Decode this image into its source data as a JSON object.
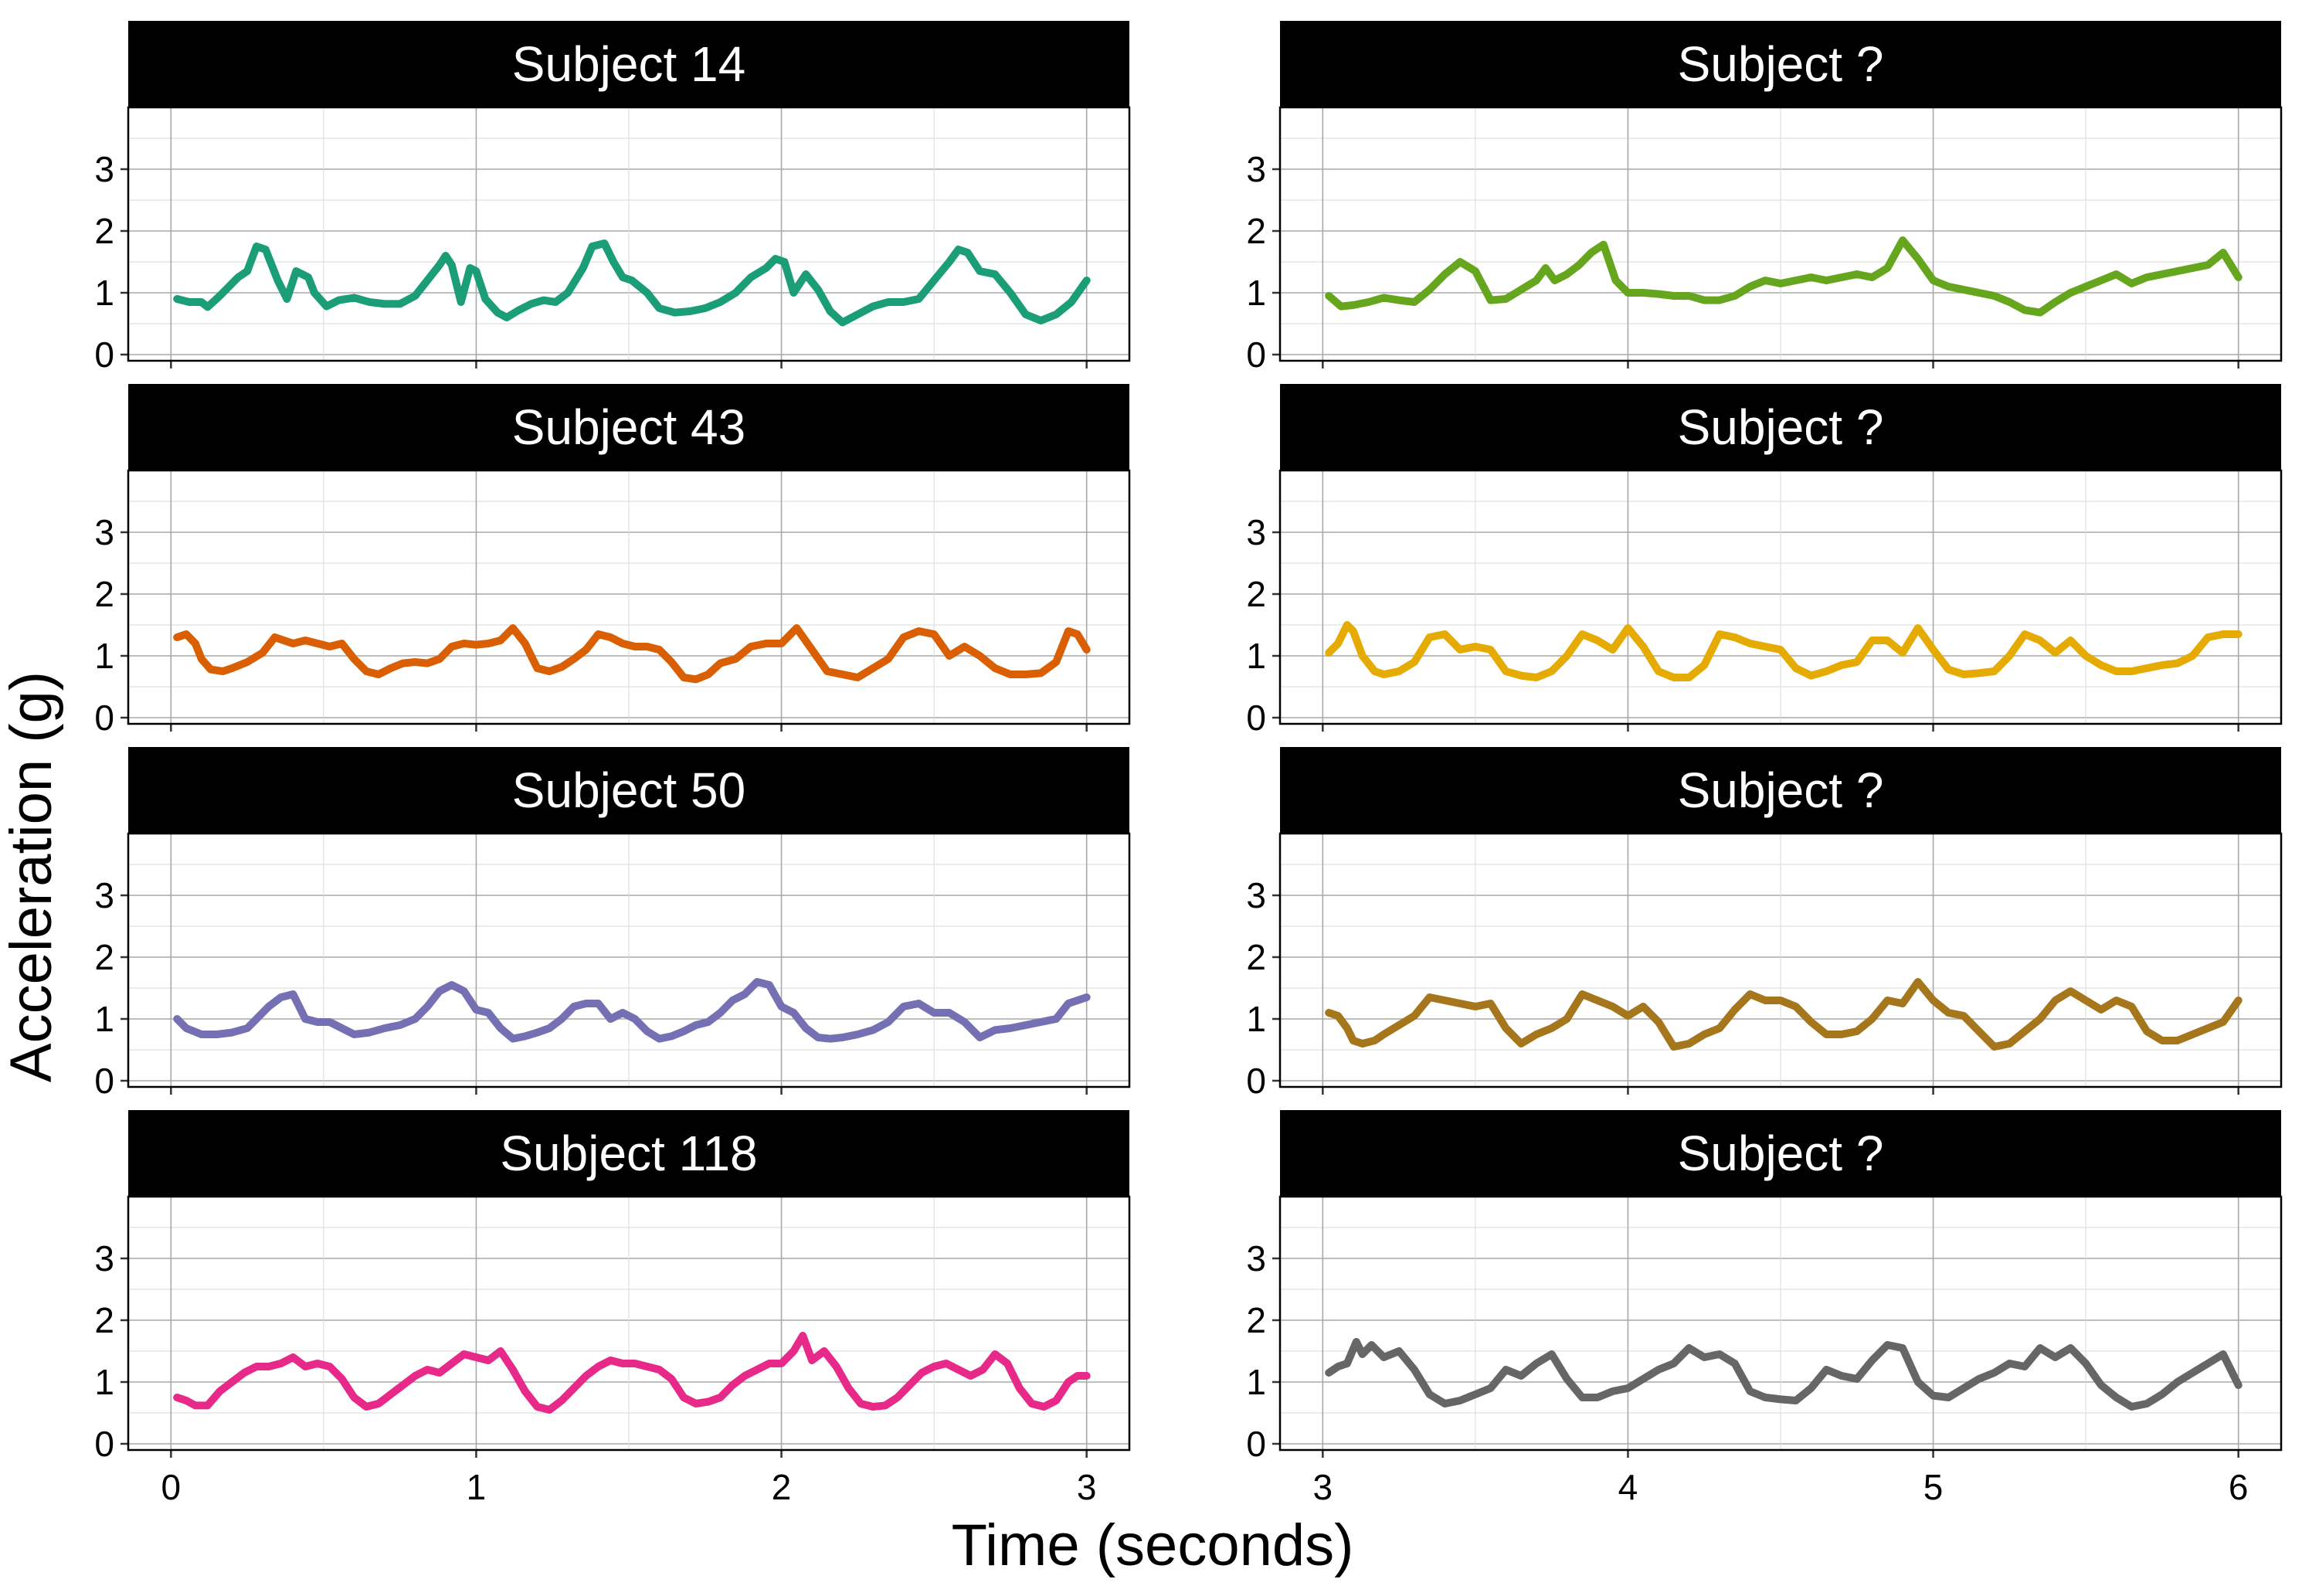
{
  "chart_data": {
    "type": "line",
    "xlabel": "Time (seconds)",
    "ylabel": "Acceleration (g)",
    "ylim": [
      -0.1,
      4.0
    ],
    "yticks": [
      0,
      1,
      2,
      3
    ],
    "grid": true,
    "facets": "4 rows x 2 columns",
    "columns": [
      {
        "xlim": [
          -0.14,
          3.14
        ],
        "xticks": [
          0,
          1,
          2,
          3
        ]
      },
      {
        "xlim": [
          2.86,
          6.14
        ],
        "xticks": [
          3,
          4,
          5,
          6
        ]
      }
    ],
    "panels": [
      {
        "title": "Subject 14",
        "column": 0,
        "row": 0,
        "color": "#1b9e77",
        "x": [
          0.02,
          0.06,
          0.1,
          0.12,
          0.16,
          0.2,
          0.22,
          0.25,
          0.28,
          0.31,
          0.35,
          0.38,
          0.41,
          0.45,
          0.47,
          0.51,
          0.55,
          0.6,
          0.65,
          0.7,
          0.75,
          0.8,
          0.84,
          0.88,
          0.9,
          0.92,
          0.95,
          0.98,
          1.0,
          1.03,
          1.07,
          1.1,
          1.14,
          1.18,
          1.22,
          1.26,
          1.3,
          1.35,
          1.38,
          1.42,
          1.45,
          1.48,
          1.51,
          1.56,
          1.6,
          1.65,
          1.7,
          1.75,
          1.8,
          1.85,
          1.9,
          1.95,
          1.98,
          2.01,
          2.04,
          2.08,
          2.12,
          2.16,
          2.2,
          2.25,
          2.3,
          2.35,
          2.4,
          2.45,
          2.5,
          2.55,
          2.58,
          2.61,
          2.65,
          2.7,
          2.75,
          2.8,
          2.85,
          2.9,
          2.95,
          3.0
        ],
        "values": [
          0.9,
          0.85,
          0.85,
          0.77,
          0.95,
          1.15,
          1.25,
          1.35,
          1.75,
          1.7,
          1.2,
          0.9,
          1.35,
          1.25,
          1.0,
          0.78,
          0.88,
          0.92,
          0.85,
          0.82,
          0.82,
          0.95,
          1.2,
          1.45,
          1.6,
          1.45,
          0.85,
          1.4,
          1.35,
          0.9,
          0.68,
          0.6,
          0.72,
          0.82,
          0.88,
          0.85,
          1.0,
          1.4,
          1.75,
          1.8,
          1.5,
          1.25,
          1.2,
          1.0,
          0.75,
          0.68,
          0.7,
          0.75,
          0.85,
          1.0,
          1.25,
          1.4,
          1.55,
          1.5,
          1.0,
          1.3,
          1.05,
          0.7,
          0.52,
          0.65,
          0.78,
          0.85,
          0.85,
          0.9,
          1.2,
          1.5,
          1.7,
          1.65,
          1.35,
          1.3,
          1.0,
          0.65,
          0.55,
          0.65,
          0.85,
          1.2
        ]
      },
      {
        "title": "Subject ?",
        "column": 1,
        "row": 0,
        "color": "#66a61e",
        "x": [
          3.02,
          3.06,
          3.1,
          3.15,
          3.2,
          3.25,
          3.3,
          3.35,
          3.4,
          3.45,
          3.5,
          3.55,
          3.6,
          3.65,
          3.7,
          3.73,
          3.76,
          3.8,
          3.84,
          3.88,
          3.92,
          3.96,
          4.0,
          4.05,
          4.1,
          4.15,
          4.2,
          4.25,
          4.3,
          4.35,
          4.4,
          4.45,
          4.5,
          4.55,
          4.6,
          4.65,
          4.7,
          4.75,
          4.8,
          4.85,
          4.9,
          4.95,
          5.0,
          5.05,
          5.1,
          5.15,
          5.2,
          5.25,
          5.3,
          5.35,
          5.4,
          5.45,
          5.5,
          5.55,
          5.6,
          5.65,
          5.7,
          5.75,
          5.8,
          5.85,
          5.9,
          5.95,
          6.0
        ],
        "values": [
          0.95,
          0.78,
          0.8,
          0.85,
          0.92,
          0.88,
          0.85,
          1.05,
          1.3,
          1.5,
          1.35,
          0.88,
          0.9,
          1.05,
          1.2,
          1.4,
          1.2,
          1.3,
          1.45,
          1.65,
          1.78,
          1.2,
          1.0,
          1.0,
          0.98,
          0.95,
          0.95,
          0.88,
          0.88,
          0.95,
          1.1,
          1.2,
          1.15,
          1.2,
          1.25,
          1.2,
          1.25,
          1.3,
          1.25,
          1.4,
          1.85,
          1.55,
          1.2,
          1.1,
          1.05,
          1.0,
          0.95,
          0.85,
          0.72,
          0.68,
          0.85,
          1.0,
          1.1,
          1.2,
          1.3,
          1.15,
          1.25,
          1.3,
          1.35,
          1.4,
          1.45,
          1.65,
          1.25
        ]
      },
      {
        "title": "Subject 43",
        "column": 0,
        "row": 1,
        "color": "#d95f02",
        "x": [
          0.02,
          0.05,
          0.08,
          0.1,
          0.13,
          0.17,
          0.2,
          0.25,
          0.3,
          0.34,
          0.37,
          0.4,
          0.44,
          0.48,
          0.52,
          0.56,
          0.6,
          0.64,
          0.68,
          0.72,
          0.76,
          0.8,
          0.84,
          0.88,
          0.92,
          0.96,
          1.0,
          1.04,
          1.08,
          1.12,
          1.16,
          1.2,
          1.24,
          1.28,
          1.32,
          1.36,
          1.4,
          1.44,
          1.48,
          1.52,
          1.56,
          1.6,
          1.64,
          1.68,
          1.72,
          1.76,
          1.8,
          1.85,
          1.9,
          1.95,
          2.0,
          2.05,
          2.1,
          2.15,
          2.2,
          2.25,
          2.3,
          2.35,
          2.4,
          2.45,
          2.5,
          2.55,
          2.6,
          2.65,
          2.7,
          2.75,
          2.8,
          2.85,
          2.9,
          2.94,
          2.97,
          3.0
        ],
        "values": [
          1.3,
          1.35,
          1.2,
          0.95,
          0.78,
          0.75,
          0.8,
          0.9,
          1.05,
          1.3,
          1.25,
          1.2,
          1.25,
          1.2,
          1.15,
          1.2,
          0.95,
          0.75,
          0.7,
          0.8,
          0.88,
          0.9,
          0.88,
          0.95,
          1.15,
          1.2,
          1.18,
          1.2,
          1.25,
          1.45,
          1.2,
          0.8,
          0.75,
          0.82,
          0.95,
          1.1,
          1.35,
          1.3,
          1.2,
          1.15,
          1.15,
          1.1,
          0.9,
          0.65,
          0.62,
          0.7,
          0.88,
          0.95,
          1.15,
          1.2,
          1.2,
          1.45,
          1.1,
          0.75,
          0.7,
          0.65,
          0.8,
          0.95,
          1.3,
          1.4,
          1.35,
          1.0,
          1.15,
          1.0,
          0.8,
          0.7,
          0.7,
          0.72,
          0.9,
          1.4,
          1.35,
          1.1
        ]
      },
      {
        "title": "Subject ?",
        "column": 1,
        "row": 1,
        "color": "#e6ab02",
        "x": [
          3.02,
          3.05,
          3.08,
          3.1,
          3.13,
          3.17,
          3.2,
          3.25,
          3.3,
          3.35,
          3.4,
          3.45,
          3.5,
          3.55,
          3.6,
          3.65,
          3.7,
          3.75,
          3.8,
          3.85,
          3.9,
          3.95,
          4.0,
          4.05,
          4.1,
          4.15,
          4.2,
          4.25,
          4.3,
          4.35,
          4.4,
          4.45,
          4.5,
          4.55,
          4.6,
          4.65,
          4.7,
          4.75,
          4.8,
          4.85,
          4.9,
          4.95,
          5.0,
          5.05,
          5.1,
          5.15,
          5.2,
          5.25,
          5.3,
          5.35,
          5.4,
          5.45,
          5.5,
          5.55,
          5.6,
          5.65,
          5.7,
          5.75,
          5.8,
          5.85,
          5.9,
          5.95,
          6.0
        ],
        "values": [
          1.05,
          1.2,
          1.5,
          1.4,
          1.0,
          0.75,
          0.7,
          0.75,
          0.9,
          1.3,
          1.35,
          1.1,
          1.15,
          1.1,
          0.75,
          0.68,
          0.65,
          0.75,
          1.0,
          1.35,
          1.25,
          1.1,
          1.45,
          1.15,
          0.75,
          0.65,
          0.65,
          0.85,
          1.35,
          1.3,
          1.2,
          1.15,
          1.1,
          0.8,
          0.68,
          0.75,
          0.85,
          0.9,
          1.25,
          1.25,
          1.05,
          1.45,
          1.1,
          0.78,
          0.7,
          0.72,
          0.75,
          1.0,
          1.35,
          1.25,
          1.05,
          1.25,
          1.0,
          0.85,
          0.75,
          0.75,
          0.8,
          0.85,
          0.88,
          1.0,
          1.3,
          1.35,
          1.35
        ]
      },
      {
        "title": "Subject 50",
        "column": 0,
        "row": 2,
        "color": "#7570b3",
        "x": [
          0.02,
          0.05,
          0.1,
          0.15,
          0.2,
          0.25,
          0.28,
          0.32,
          0.36,
          0.4,
          0.44,
          0.48,
          0.52,
          0.56,
          0.6,
          0.65,
          0.7,
          0.75,
          0.8,
          0.84,
          0.88,
          0.92,
          0.96,
          1.0,
          1.04,
          1.08,
          1.12,
          1.16,
          1.2,
          1.24,
          1.28,
          1.32,
          1.36,
          1.4,
          1.44,
          1.48,
          1.52,
          1.56,
          1.6,
          1.64,
          1.68,
          1.72,
          1.76,
          1.8,
          1.84,
          1.88,
          1.92,
          1.96,
          2.0,
          2.04,
          2.08,
          2.12,
          2.16,
          2.2,
          2.25,
          2.3,
          2.35,
          2.4,
          2.45,
          2.5,
          2.55,
          2.6,
          2.65,
          2.7,
          2.75,
          2.8,
          2.85,
          2.9,
          2.94,
          2.97,
          3.0
        ],
        "values": [
          1.0,
          0.85,
          0.75,
          0.75,
          0.78,
          0.85,
          1.0,
          1.2,
          1.35,
          1.4,
          1.0,
          0.95,
          0.95,
          0.85,
          0.75,
          0.78,
          0.85,
          0.9,
          1.0,
          1.2,
          1.45,
          1.55,
          1.45,
          1.15,
          1.1,
          0.85,
          0.68,
          0.72,
          0.78,
          0.85,
          1.0,
          1.2,
          1.25,
          1.25,
          1.0,
          1.1,
          1.0,
          0.8,
          0.68,
          0.72,
          0.8,
          0.9,
          0.95,
          1.1,
          1.3,
          1.4,
          1.6,
          1.55,
          1.2,
          1.1,
          0.85,
          0.7,
          0.68,
          0.7,
          0.75,
          0.82,
          0.95,
          1.2,
          1.25,
          1.1,
          1.1,
          0.95,
          0.7,
          0.82,
          0.85,
          0.9,
          0.95,
          1.0,
          1.25,
          1.3,
          1.35
        ]
      },
      {
        "title": "Subject ?",
        "column": 1,
        "row": 2,
        "color": "#a6761d",
        "x": [
          3.02,
          3.05,
          3.08,
          3.1,
          3.13,
          3.17,
          3.2,
          3.25,
          3.3,
          3.35,
          3.4,
          3.45,
          3.5,
          3.55,
          3.6,
          3.65,
          3.7,
          3.75,
          3.8,
          3.85,
          3.9,
          3.95,
          4.0,
          4.05,
          4.1,
          4.15,
          4.2,
          4.25,
          4.3,
          4.35,
          4.4,
          4.45,
          4.5,
          4.55,
          4.6,
          4.65,
          4.7,
          4.75,
          4.8,
          4.85,
          4.9,
          4.95,
          5.0,
          5.05,
          5.1,
          5.15,
          5.2,
          5.25,
          5.3,
          5.35,
          5.4,
          5.45,
          5.5,
          5.55,
          5.6,
          5.65,
          5.7,
          5.75,
          5.8,
          5.85,
          5.9,
          5.95,
          6.0
        ],
        "values": [
          1.1,
          1.05,
          0.85,
          0.65,
          0.6,
          0.65,
          0.75,
          0.9,
          1.05,
          1.35,
          1.3,
          1.25,
          1.2,
          1.25,
          0.85,
          0.6,
          0.75,
          0.85,
          1.0,
          1.4,
          1.3,
          1.2,
          1.05,
          1.2,
          0.95,
          0.55,
          0.6,
          0.75,
          0.85,
          1.15,
          1.4,
          1.3,
          1.3,
          1.2,
          0.95,
          0.75,
          0.75,
          0.8,
          1.0,
          1.3,
          1.25,
          1.6,
          1.3,
          1.1,
          1.05,
          0.8,
          0.55,
          0.6,
          0.8,
          1.0,
          1.3,
          1.45,
          1.3,
          1.15,
          1.3,
          1.2,
          0.8,
          0.65,
          0.65,
          0.75,
          0.85,
          0.95,
          1.3
        ]
      },
      {
        "title": "Subject 118",
        "column": 0,
        "row": 3,
        "color": "#e7298a",
        "x": [
          0.02,
          0.05,
          0.08,
          0.12,
          0.16,
          0.2,
          0.24,
          0.28,
          0.32,
          0.36,
          0.4,
          0.44,
          0.48,
          0.52,
          0.56,
          0.6,
          0.64,
          0.68,
          0.72,
          0.76,
          0.8,
          0.84,
          0.88,
          0.92,
          0.96,
          1.0,
          1.04,
          1.08,
          1.12,
          1.16,
          1.2,
          1.24,
          1.28,
          1.32,
          1.36,
          1.4,
          1.44,
          1.48,
          1.52,
          1.56,
          1.6,
          1.64,
          1.68,
          1.72,
          1.76,
          1.8,
          1.84,
          1.88,
          1.92,
          1.96,
          2.0,
          2.04,
          2.07,
          2.1,
          2.14,
          2.18,
          2.22,
          2.26,
          2.3,
          2.34,
          2.38,
          2.42,
          2.46,
          2.5,
          2.54,
          2.58,
          2.62,
          2.66,
          2.7,
          2.74,
          2.78,
          2.82,
          2.86,
          2.9,
          2.94,
          2.97,
          3.0
        ],
        "values": [
          0.75,
          0.7,
          0.62,
          0.62,
          0.85,
          1.0,
          1.15,
          1.25,
          1.25,
          1.3,
          1.4,
          1.25,
          1.3,
          1.25,
          1.05,
          0.75,
          0.6,
          0.65,
          0.8,
          0.95,
          1.1,
          1.2,
          1.15,
          1.3,
          1.45,
          1.4,
          1.35,
          1.5,
          1.2,
          0.85,
          0.6,
          0.55,
          0.7,
          0.9,
          1.1,
          1.25,
          1.35,
          1.3,
          1.3,
          1.25,
          1.2,
          1.05,
          0.75,
          0.65,
          0.68,
          0.75,
          0.95,
          1.1,
          1.2,
          1.3,
          1.3,
          1.5,
          1.75,
          1.35,
          1.5,
          1.25,
          0.9,
          0.65,
          0.6,
          0.62,
          0.75,
          0.95,
          1.15,
          1.25,
          1.3,
          1.2,
          1.1,
          1.2,
          1.45,
          1.3,
          0.9,
          0.65,
          0.6,
          0.7,
          1.0,
          1.1,
          1.1
        ]
      },
      {
        "title": "Subject ?",
        "column": 1,
        "row": 3,
        "color": "#666666",
        "x": [
          3.02,
          3.05,
          3.08,
          3.11,
          3.13,
          3.16,
          3.2,
          3.25,
          3.3,
          3.35,
          3.4,
          3.45,
          3.5,
          3.55,
          3.6,
          3.65,
          3.7,
          3.75,
          3.8,
          3.85,
          3.9,
          3.95,
          4.0,
          4.05,
          4.1,
          4.15,
          4.2,
          4.25,
          4.3,
          4.35,
          4.4,
          4.45,
          4.5,
          4.55,
          4.6,
          4.65,
          4.7,
          4.75,
          4.8,
          4.85,
          4.9,
          4.95,
          5.0,
          5.05,
          5.1,
          5.15,
          5.2,
          5.25,
          5.3,
          5.35,
          5.4,
          5.45,
          5.5,
          5.55,
          5.6,
          5.65,
          5.7,
          5.75,
          5.8,
          5.85,
          5.9,
          5.95,
          6.0
        ],
        "values": [
          1.15,
          1.25,
          1.3,
          1.65,
          1.45,
          1.6,
          1.4,
          1.5,
          1.2,
          0.8,
          0.65,
          0.7,
          0.8,
          0.9,
          1.2,
          1.1,
          1.3,
          1.45,
          1.05,
          0.75,
          0.75,
          0.85,
          0.9,
          1.05,
          1.2,
          1.3,
          1.55,
          1.4,
          1.45,
          1.3,
          0.85,
          0.75,
          0.72,
          0.7,
          0.9,
          1.2,
          1.1,
          1.05,
          1.35,
          1.6,
          1.55,
          1.0,
          0.78,
          0.75,
          0.9,
          1.05,
          1.15,
          1.3,
          1.25,
          1.55,
          1.4,
          1.55,
          1.3,
          0.95,
          0.75,
          0.6,
          0.65,
          0.8,
          1.0,
          1.15,
          1.3,
          1.45,
          0.95
        ]
      }
    ]
  }
}
